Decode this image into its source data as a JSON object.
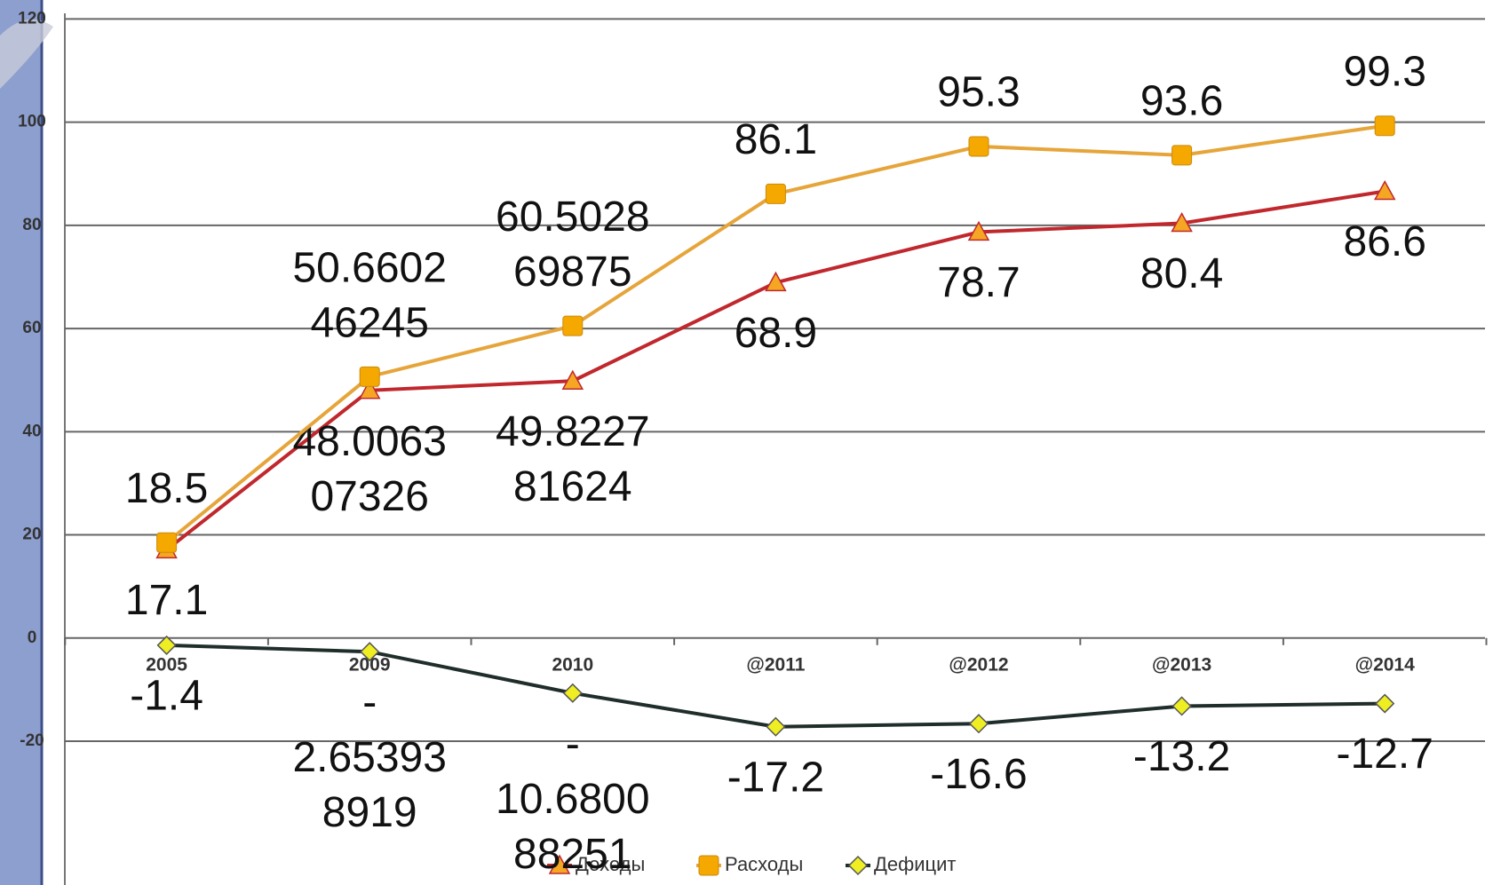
{
  "chart_data": {
    "type": "line",
    "categories": [
      "2005",
      "2009",
      "2010",
      "@2011",
      "@2012",
      "@2013",
      "@2014"
    ],
    "series": [
      {
        "name": "Доходы",
        "color": "#c0282d",
        "marker_color": "#f5a623",
        "marker": "triangle",
        "values": [
          17.1,
          48.006307326,
          49.822781624,
          68.9,
          78.7,
          80.4,
          86.6
        ]
      },
      {
        "name": "Расходы",
        "color": "#e6a53a",
        "marker_color": "#f5a800",
        "marker": "square",
        "values": [
          18.5,
          50.660246245,
          60.502869875,
          86.1,
          95.3,
          93.6,
          99.3
        ]
      },
      {
        "name": "Дефицит",
        "color": "#1f2d2b",
        "marker_color": "#eeee22",
        "marker": "diamond",
        "values": [
          -1.4,
          -2.653938919,
          -10.680088251,
          -17.2,
          -16.6,
          -13.2,
          -12.7
        ]
      }
    ],
    "ylim": [
      -20,
      120
    ],
    "yticks": [
      -20,
      0,
      20,
      40,
      60,
      80,
      100,
      120
    ],
    "grid": true
  }
}
